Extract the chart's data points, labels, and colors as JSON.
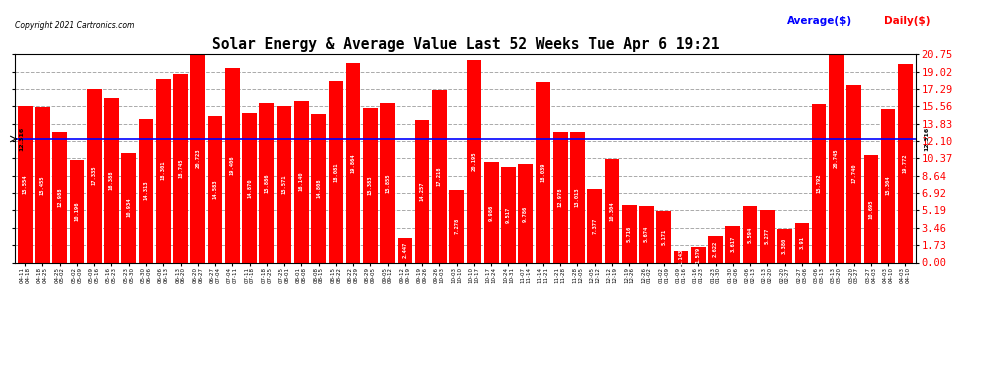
{
  "title": "Solar Energy & Average Value Last 52 Weeks Tue Apr 6 19:21",
  "copyright": "Copyright 2021 Cartronics.com",
  "average_label": "Average($)",
  "daily_label": "Daily($)",
  "average_value": 12.316,
  "bar_color": "#ff0000",
  "avg_line_color": "#0000ff",
  "background_color": "#ffffff",
  "ylim_max": 20.75,
  "yticks": [
    0.0,
    1.73,
    3.46,
    5.19,
    6.92,
    8.64,
    10.37,
    12.1,
    13.83,
    15.56,
    17.29,
    19.02,
    20.75
  ],
  "values": [
    15.554,
    15.455,
    12.988,
    10.196,
    17.335,
    16.388,
    10.934,
    14.313,
    18.301,
    18.745,
    20.723,
    14.583,
    19.406,
    14.87,
    15.886,
    15.571,
    16.14,
    14.808,
    18.081,
    19.864,
    15.383,
    15.855,
    2.447,
    14.257,
    17.218,
    7.278,
    20.195,
    9.986,
    9.517,
    9.786,
    18.039,
    12.978,
    13.013,
    7.377,
    10.304,
    5.716,
    5.674,
    5.171,
    1.143,
    1.579,
    2.622,
    3.617,
    5.594,
    5.277,
    3.38,
    3.91,
    15.792,
    20.745,
    17.74,
    10.695,
    15.304,
    19.772
  ],
  "bar_text": [
    "15.554",
    "15.455",
    "12.988",
    "10.196",
    "17.335",
    "16.388",
    "10.934",
    "14.313",
    "18.301",
    "18.745",
    "20.723",
    "14.583",
    "19.406",
    "14.870",
    "15.886",
    "15.571",
    "16.140",
    "14.808",
    "18.081",
    "19.864",
    "15.383",
    "15.855",
    "2.447",
    "14.257",
    "17.218",
    "7.278",
    "20.195",
    "9.986",
    "9.517",
    "9.786",
    "18.039",
    "12.978",
    "13.013",
    "7.377",
    "10.304",
    "5.716",
    "5.674",
    "5.171",
    "1.143",
    "1.579",
    "2.622",
    "3.617",
    "5.594",
    "5.277",
    "3.380",
    "3.91",
    "15.792",
    "20.745",
    "17.740",
    "10.695",
    "15.304",
    "19.772"
  ],
  "xlabels": [
    "04-11\n04-18",
    "04-18\n04-25",
    "04-25\n05-02",
    "05-02\n05-09",
    "05-09\n05-16",
    "05-16\n05-23",
    "05-23\n05-30",
    "05-30\n06-06",
    "06-06\n06-13",
    "06-13\n06-20",
    "06-20\n06-27",
    "06-27\n07-04",
    "07-04\n07-11",
    "07-11\n07-18",
    "07-18\n07-25",
    "07-25\n08-01",
    "08-01\n08-08",
    "08-08\n08-15",
    "08-15\n08-22",
    "08-22\n08-29",
    "08-29\n09-05",
    "09-05\n09-12",
    "09-12\n09-19",
    "09-19\n09-26",
    "09-26\n10-03",
    "10-03\n10-10",
    "10-10\n10-17",
    "10-17\n10-24",
    "10-24\n10-31",
    "11-07\n11-14",
    "11-14\n11-21",
    "11-21\n11-28",
    "11-28\n12-05",
    "12-05\n12-12",
    "12-12\n12-19",
    "12-19\n12-26",
    "12-26\n01-02",
    "01-02\n01-09",
    "01-09\n01-16",
    "01-16\n01-23",
    "01-23\n01-30",
    "01-30\n02-06",
    "02-06\n02-13",
    "02-13\n02-20",
    "02-20\n02-27",
    "02-27\n03-06",
    "03-06\n03-13",
    "03-13\n03-20",
    "03-20\n03-27",
    "03-27\n04-03",
    "04-03\n04-10",
    "04-03\n04-10"
  ]
}
